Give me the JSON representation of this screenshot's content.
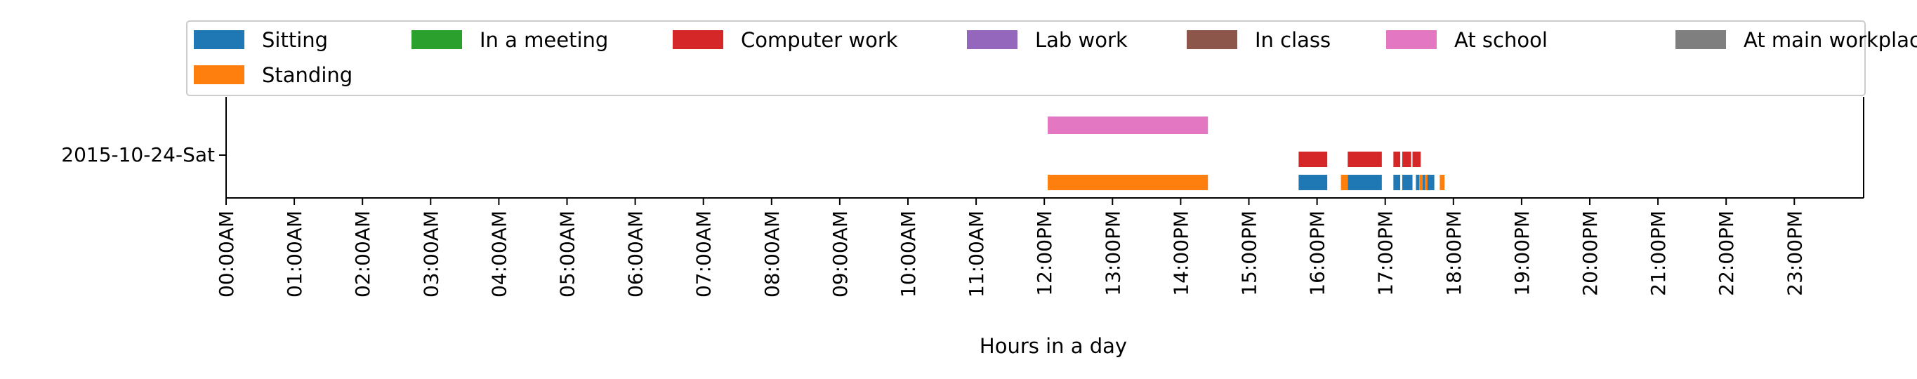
{
  "chart_data": {
    "type": "timeline",
    "title": "",
    "xlabel": "Hours in a day",
    "ylabel": "",
    "xlim_hours": [
      0,
      24
    ],
    "row_label": "2015-10-24-Sat",
    "x_ticks": [
      {
        "hour": 0,
        "label": "00:00AM"
      },
      {
        "hour": 1,
        "label": "01:00AM"
      },
      {
        "hour": 2,
        "label": "02:00AM"
      },
      {
        "hour": 3,
        "label": "03:00AM"
      },
      {
        "hour": 4,
        "label": "04:00AM"
      },
      {
        "hour": 5,
        "label": "05:00AM"
      },
      {
        "hour": 6,
        "label": "06:00AM"
      },
      {
        "hour": 7,
        "label": "07:00AM"
      },
      {
        "hour": 8,
        "label": "08:00AM"
      },
      {
        "hour": 9,
        "label": "09:00AM"
      },
      {
        "hour": 10,
        "label": "10:00AM"
      },
      {
        "hour": 11,
        "label": "11:00AM"
      },
      {
        "hour": 12,
        "label": "12:00PM"
      },
      {
        "hour": 13,
        "label": "13:00PM"
      },
      {
        "hour": 14,
        "label": "14:00PM"
      },
      {
        "hour": 15,
        "label": "15:00PM"
      },
      {
        "hour": 16,
        "label": "16:00PM"
      },
      {
        "hour": 17,
        "label": "17:00PM"
      },
      {
        "hour": 18,
        "label": "18:00PM"
      },
      {
        "hour": 19,
        "label": "19:00PM"
      },
      {
        "hour": 20,
        "label": "20:00PM"
      },
      {
        "hour": 21,
        "label": "21:00PM"
      },
      {
        "hour": 22,
        "label": "22:00PM"
      },
      {
        "hour": 23,
        "label": "23:00PM"
      }
    ],
    "legend": {
      "location": "top",
      "entries": [
        {
          "name": "Sitting",
          "color": "#1f77b4"
        },
        {
          "name": "In a meeting",
          "color": "#2ca02c"
        },
        {
          "name": "Computer work",
          "color": "#d62728"
        },
        {
          "name": "Lab work",
          "color": "#9467bd"
        },
        {
          "name": "In class",
          "color": "#8c564b"
        },
        {
          "name": "At school",
          "color": "#e377c2"
        },
        {
          "name": "At main workplace",
          "color": "#7f7f7f"
        },
        {
          "name": "Standing",
          "color": "#ff7f0e"
        }
      ]
    },
    "series": [
      {
        "name": "Sitting",
        "color": "#1f77b4",
        "lane": 0,
        "intervals": [
          [
            15.73,
            16.15
          ],
          [
            16.45,
            16.95
          ],
          [
            17.12,
            17.22
          ],
          [
            17.25,
            17.4
          ],
          [
            17.45,
            17.5
          ],
          [
            17.55,
            17.72
          ]
        ]
      },
      {
        "name": "Standing",
        "color": "#ff7f0e",
        "lane": 0,
        "intervals": [
          [
            12.05,
            14.4
          ],
          [
            16.35,
            16.45
          ],
          [
            17.5,
            17.55
          ],
          [
            17.58,
            17.62
          ],
          [
            17.8,
            17.87
          ]
        ]
      },
      {
        "name": "Computer work",
        "color": "#d62728",
        "lane": 1,
        "intervals": [
          [
            15.73,
            16.15
          ],
          [
            16.45,
            16.95
          ],
          [
            17.12,
            17.22
          ],
          [
            17.25,
            17.38
          ],
          [
            17.4,
            17.52
          ]
        ]
      },
      {
        "name": "At school",
        "color": "#e377c2",
        "lane": 2,
        "intervals": [
          [
            12.05,
            14.4
          ]
        ]
      }
    ]
  }
}
